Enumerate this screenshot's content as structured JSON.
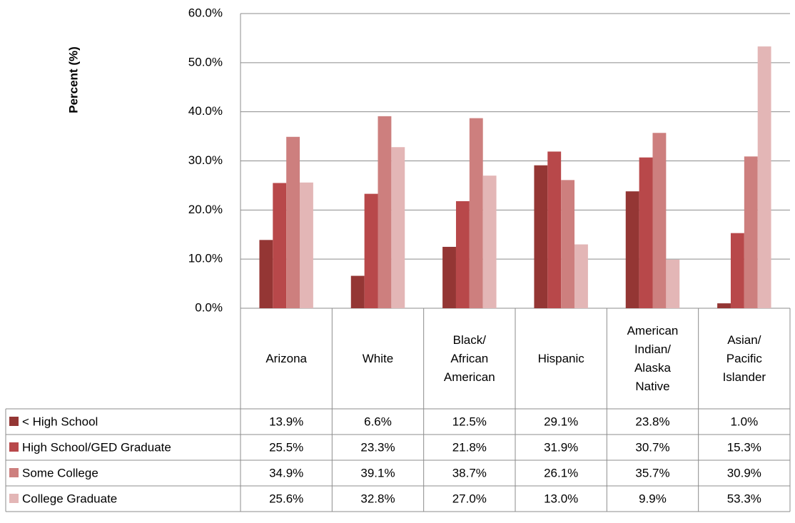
{
  "chart_data": {
    "type": "bar",
    "y_label": "Percent (%)",
    "categories": [
      "Arizona",
      "White",
      "Black/\nAfrican\nAmerican",
      "Hispanic",
      "American\nIndian/\nAlaska\nNative",
      "Asian/\nPacific\nIslander"
    ],
    "series": [
      {
        "name": "< High School",
        "color": "#943634",
        "values": [
          13.9,
          6.6,
          12.5,
          29.1,
          23.8,
          1.0
        ],
        "value_labels": [
          "13.9%",
          "6.6%",
          "12.5%",
          "29.1%",
          "23.8%",
          "1.0%"
        ]
      },
      {
        "name": "High School/GED Graduate",
        "color": "#b8484a",
        "values": [
          25.5,
          23.3,
          21.8,
          31.9,
          30.7,
          15.3
        ],
        "value_labels": [
          "25.5%",
          "23.3%",
          "21.8%",
          "31.9%",
          "30.7%",
          "15.3%"
        ]
      },
      {
        "name": "Some College",
        "color": "#cd7f7e",
        "values": [
          34.9,
          39.1,
          38.7,
          26.1,
          35.7,
          30.9
        ],
        "value_labels": [
          "34.9%",
          "39.1%",
          "38.7%",
          "26.1%",
          "35.7%",
          "30.9%"
        ]
      },
      {
        "name": "College Graduate",
        "color": "#e3b6b6",
        "values": [
          25.6,
          32.8,
          27.0,
          13.0,
          9.9,
          53.3
        ],
        "value_labels": [
          "25.6%",
          "32.8%",
          "27.0%",
          "13.0%",
          "9.9%",
          "53.3%"
        ]
      }
    ],
    "ylim": [
      0,
      60
    ],
    "yticks": [
      {
        "value": 0,
        "label": "0.0%"
      },
      {
        "value": 10,
        "label": "10.0%"
      },
      {
        "value": 20,
        "label": "20.0%"
      },
      {
        "value": 30,
        "label": "30.0%"
      },
      {
        "value": 40,
        "label": "40.0%"
      },
      {
        "value": 50,
        "label": "50.0%"
      },
      {
        "value": 60,
        "label": "60.0%"
      }
    ],
    "grid": true
  }
}
